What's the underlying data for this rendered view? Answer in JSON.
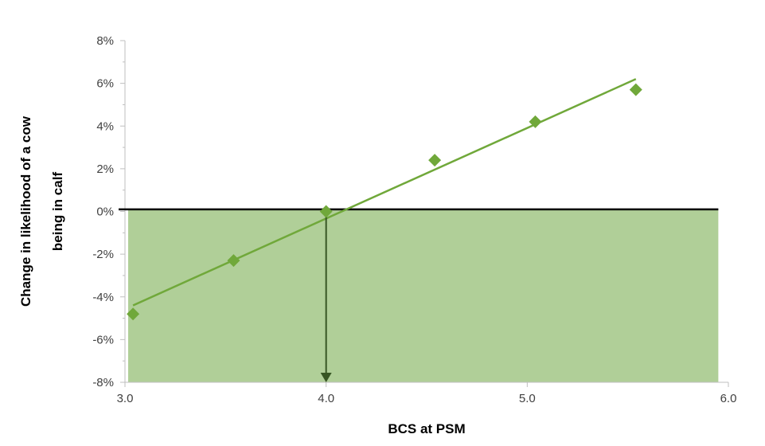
{
  "chart_data": {
    "type": "scatter",
    "title": "",
    "xlabel": "BCS at PSM",
    "ylabel_lines": [
      "Change in likelihood of a cow",
      "being in calf"
    ],
    "xlim": [
      3.0,
      6.0
    ],
    "ylim": [
      -8,
      8
    ],
    "x_ticks": [
      3.0,
      4.0,
      5.0,
      6.0
    ],
    "x_tick_labels": [
      "3.0",
      "4.0",
      "5.0",
      "6.0"
    ],
    "y_ticks": [
      8,
      6,
      4,
      2,
      0,
      -2,
      -4,
      -6,
      -8
    ],
    "y_tick_labels": [
      "8%",
      "6%",
      "4%",
      "2%",
      "0%",
      "-2%",
      "-4%",
      "-6%",
      "-8%"
    ],
    "grid": false,
    "legend": "none",
    "series": [
      {
        "x": [
          3.04,
          3.54,
          4.0,
          4.54,
          5.04,
          5.54
        ],
        "y": [
          -4.8,
          -2.3,
          0.0,
          2.4,
          4.2,
          5.7
        ]
      }
    ],
    "trendline": {
      "x": [
        3.04,
        5.54
      ],
      "y": [
        -4.4,
        6.2
      ]
    },
    "reference_line_y": 0.1,
    "shaded_region": {
      "x": [
        3.0,
        5.95
      ],
      "y": [
        -8,
        0.1
      ]
    },
    "arrow": {
      "x": 4.0,
      "y_from": 0.1,
      "y_to": -8
    },
    "colors": {
      "marker": "#70a83a",
      "trendline": "#70a83a",
      "shading": "#b0cf98",
      "reference_line": "#000000",
      "arrow": "#375623"
    }
  }
}
